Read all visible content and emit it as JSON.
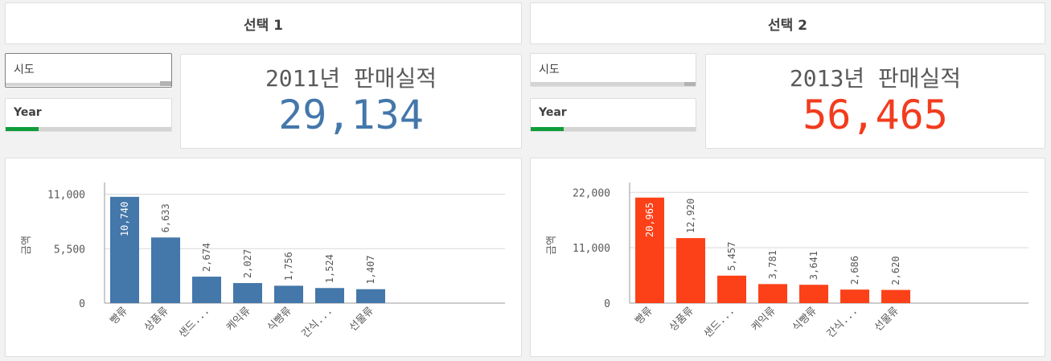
{
  "panels": [
    {
      "header": "선택 1",
      "filters": [
        {
          "label": "시도",
          "bold": false,
          "progress": 0.0
        },
        {
          "label": "Year",
          "bold": true,
          "progress": 0.2
        }
      ],
      "kpi": {
        "title": "2011년 판매실적",
        "value": "29,134",
        "color": "#4477aa"
      }
    },
    {
      "header": "선택 2",
      "filters": [
        {
          "label": "시도",
          "bold": false,
          "progress": 0.0
        },
        {
          "label": "Year",
          "bold": true,
          "progress": 0.2
        }
      ],
      "kpi": {
        "title": "2013년 판매실적",
        "value": "56,465",
        "color": "#f23c1e"
      }
    }
  ],
  "chart_data": [
    {
      "type": "bar",
      "categories": [
        "빵류",
        "상품류",
        "샌드...",
        "케익류",
        "식빵류",
        "간식...",
        "선물류"
      ],
      "values": [
        10740,
        6633,
        2674,
        2027,
        1756,
        1524,
        1407
      ],
      "value_labels": [
        "10,740",
        "6,633",
        "2,674",
        "2,027",
        "1,756",
        "1,524",
        "1,407"
      ],
      "ylabel": "금액",
      "yticks": [
        0,
        5500,
        11000
      ],
      "ytick_labels": [
        "0",
        "5,500",
        "11,000"
      ],
      "ylim": [
        0,
        11700
      ],
      "color": "#4477aa",
      "grid": true
    },
    {
      "type": "bar",
      "categories": [
        "빵류",
        "상품류",
        "샌드...",
        "케익류",
        "식빵류",
        "간식...",
        "선물류"
      ],
      "values": [
        20965,
        12920,
        5457,
        3781,
        3641,
        2686,
        2620
      ],
      "value_labels": [
        "20,965",
        "12,920",
        "5,457",
        "3,781",
        "3,641",
        "2,686",
        "2,620"
      ],
      "ylabel": "금액",
      "yticks": [
        0,
        11000,
        22000
      ],
      "ytick_labels": [
        "0",
        "11,000",
        "22,000"
      ],
      "ylim": [
        0,
        23000
      ],
      "color": "#fc4119",
      "grid": true
    }
  ]
}
